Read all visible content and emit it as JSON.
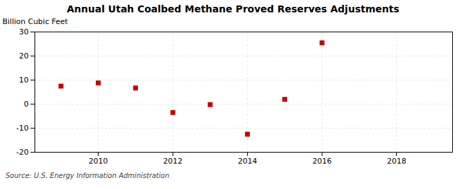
{
  "chart_data": {
    "type": "scatter",
    "title": "Annual Utah Coalbed Methane Proved Reserves Adjustments",
    "ylabel": "Billion Cubic Feet",
    "source": "Source: U.S. Energy Information Administration",
    "x": [
      2009,
      2010,
      2011,
      2012,
      2013,
      2014,
      2015,
      2016
    ],
    "values": [
      7.5,
      8.8,
      6.7,
      -3.5,
      -0.2,
      -12.5,
      2.0,
      25.5
    ],
    "color": "#cc0000",
    "marker": "square",
    "xlim": [
      2008.3,
      2019.5
    ],
    "xticks": [
      2010,
      2012,
      2014,
      2016,
      2018
    ],
    "ylim": [
      -20,
      30
    ],
    "yticks": [
      -20,
      -10,
      0,
      10,
      20,
      30
    ],
    "grid": true
  }
}
